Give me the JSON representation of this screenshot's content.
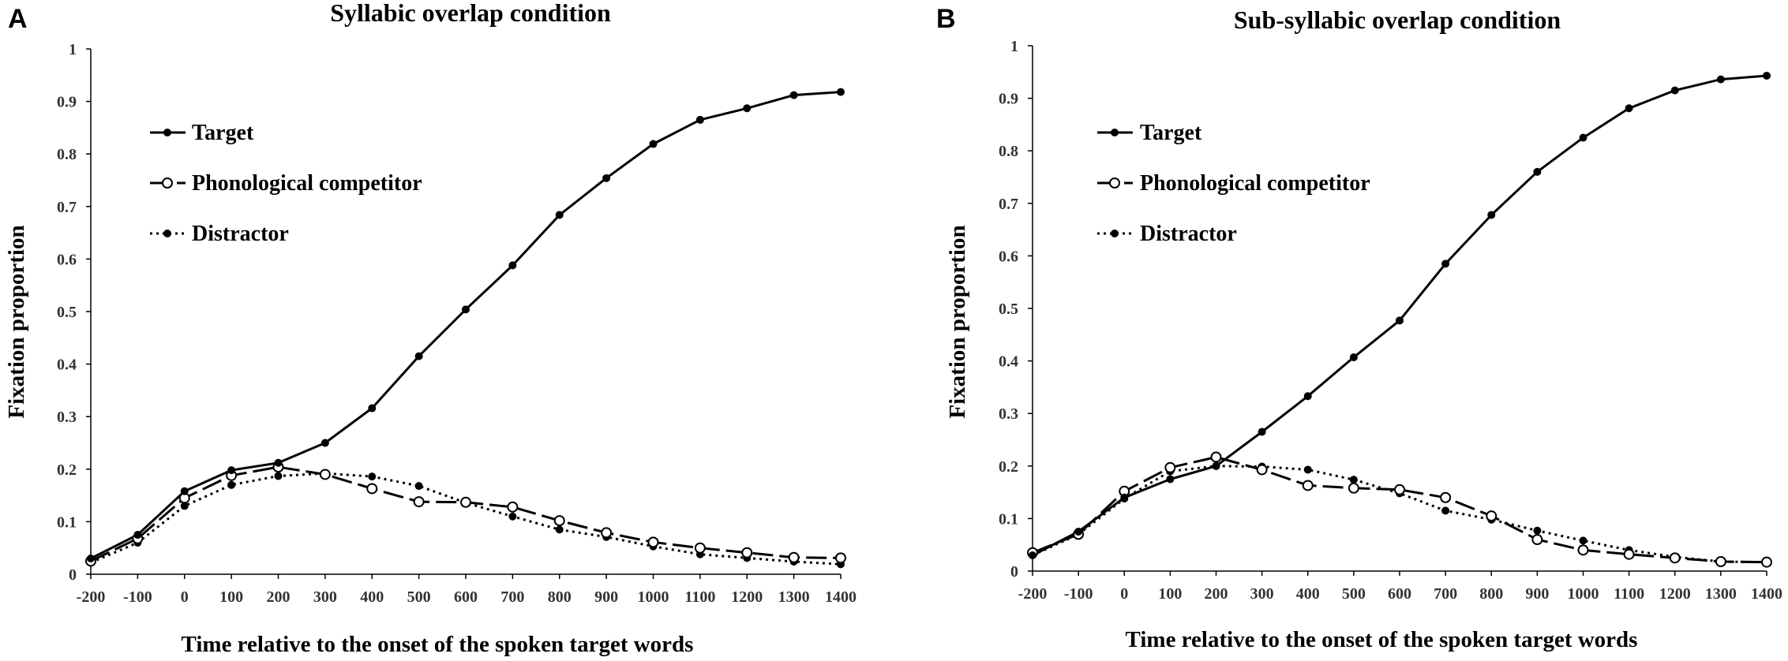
{
  "chart_data": [
    {
      "type": "line",
      "panel": "A",
      "title": "Syllabic overlap condition",
      "xlabel": "Time relative to the onset of the spoken target words",
      "ylabel": "Fixation proportion",
      "x": [
        -200,
        -100,
        0,
        100,
        200,
        300,
        400,
        500,
        600,
        700,
        800,
        900,
        1000,
        1100,
        1200,
        1300,
        1400
      ],
      "xlim": [
        -200,
        1400
      ],
      "ylim": [
        0,
        1
      ],
      "yticks": [
        "0",
        "0.1",
        "0.2",
        "0.3",
        "0.4",
        "0.5",
        "0.6",
        "0.7",
        "0.8",
        "0.9",
        "1"
      ],
      "series": [
        {
          "name": "Target",
          "style": "solid",
          "marker": "filled",
          "values": [
            0.03,
            0.075,
            0.158,
            0.198,
            0.212,
            0.25,
            0.316,
            0.415,
            0.504,
            0.588,
            0.684,
            0.754,
            0.819,
            0.865,
            0.887,
            0.912,
            0.918
          ]
        },
        {
          "name": "Phonological competitor",
          "style": "dashed",
          "marker": "open",
          "values": [
            0.025,
            0.068,
            0.145,
            0.188,
            0.204,
            0.19,
            0.163,
            0.138,
            0.137,
            0.128,
            0.102,
            0.079,
            0.061,
            0.05,
            0.041,
            0.032,
            0.031
          ]
        },
        {
          "name": "Distractor",
          "style": "dotted",
          "marker": "filled",
          "values": [
            0.022,
            0.06,
            0.13,
            0.17,
            0.187,
            0.192,
            0.186,
            0.168,
            0.136,
            0.11,
            0.085,
            0.071,
            0.053,
            0.038,
            0.031,
            0.024,
            0.019
          ]
        }
      ]
    },
    {
      "type": "line",
      "panel": "B",
      "title": "Sub-syllabic overlap condition",
      "xlabel": "Time relative to the onset of the spoken target words",
      "ylabel": "Fixation proportion",
      "x": [
        -200,
        -100,
        0,
        100,
        200,
        300,
        400,
        500,
        600,
        700,
        800,
        900,
        1000,
        1100,
        1200,
        1300,
        1400
      ],
      "xlim": [
        -200,
        1400
      ],
      "ylim": [
        0,
        1
      ],
      "yticks": [
        "0",
        "0.1",
        "0.2",
        "0.3",
        "0.4",
        "0.5",
        "0.6",
        "0.7",
        "0.8",
        "0.9",
        "1"
      ],
      "series": [
        {
          "name": "Target",
          "style": "solid",
          "marker": "filled",
          "values": [
            0.03,
            0.075,
            0.14,
            0.175,
            0.2,
            0.265,
            0.333,
            0.407,
            0.477,
            0.585,
            0.678,
            0.76,
            0.825,
            0.881,
            0.915,
            0.936,
            0.943
          ]
        },
        {
          "name": "Phonological competitor",
          "style": "dashed",
          "marker": "open",
          "values": [
            0.035,
            0.07,
            0.152,
            0.197,
            0.217,
            0.193,
            0.163,
            0.158,
            0.155,
            0.14,
            0.105,
            0.06,
            0.04,
            0.032,
            0.025,
            0.018,
            0.017
          ]
        },
        {
          "name": "Distractor",
          "style": "dotted",
          "marker": "filled",
          "values": [
            0.03,
            0.07,
            0.138,
            0.19,
            0.2,
            0.199,
            0.193,
            0.174,
            0.148,
            0.115,
            0.098,
            0.077,
            0.058,
            0.04,
            0.027,
            0.018,
            0.017
          ]
        }
      ]
    }
  ]
}
